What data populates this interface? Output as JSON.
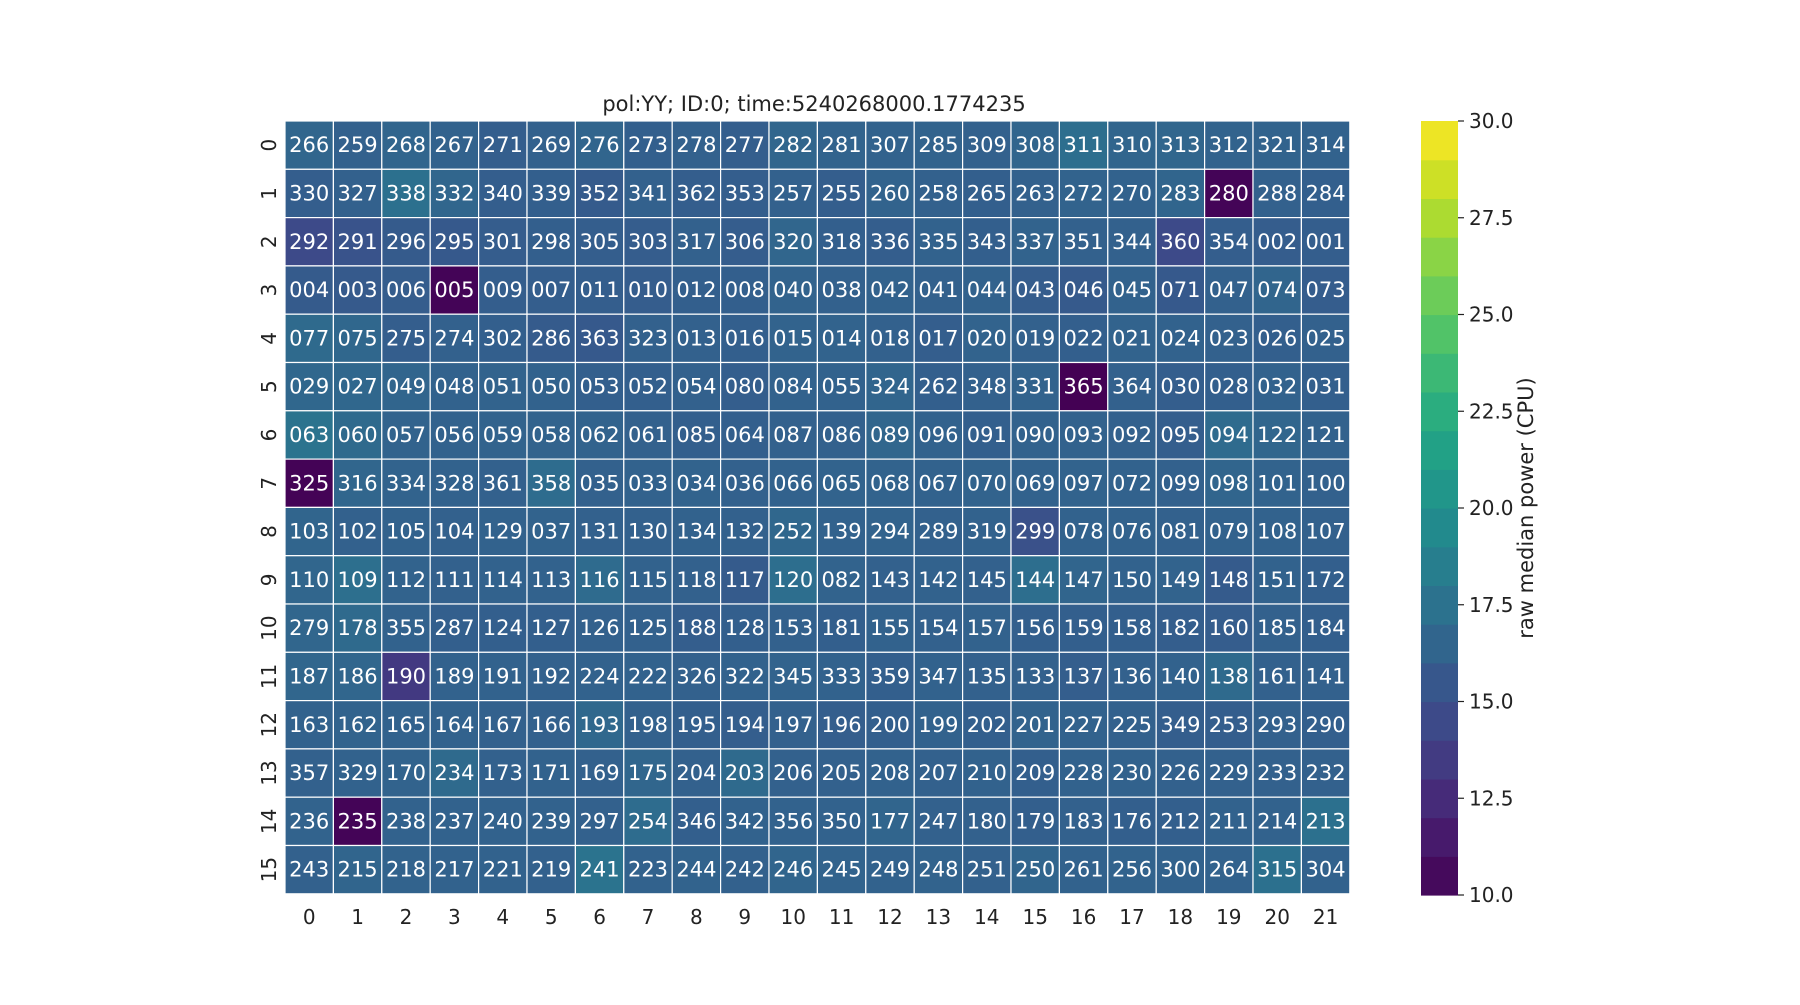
{
  "chart_data": {
    "type": "heatmap",
    "title": "pol:YY; ID:0; time:5240268000.1774235",
    "x_ticks": [
      "0",
      "1",
      "2",
      "3",
      "4",
      "5",
      "6",
      "7",
      "8",
      "9",
      "10",
      "11",
      "12",
      "13",
      "14",
      "15",
      "16",
      "17",
      "18",
      "19",
      "20",
      "21"
    ],
    "y_ticks": [
      "0",
      "1",
      "2",
      "3",
      "4",
      "5",
      "6",
      "7",
      "8",
      "9",
      "10",
      "11",
      "12",
      "13",
      "14",
      "15"
    ],
    "cell_labels": [
      [
        "266",
        "259",
        "268",
        "267",
        "271",
        "269",
        "276",
        "273",
        "278",
        "277",
        "282",
        "281",
        "307",
        "285",
        "309",
        "308",
        "311",
        "310",
        "313",
        "312",
        "321",
        "314"
      ],
      [
        "330",
        "327",
        "338",
        "332",
        "340",
        "339",
        "352",
        "341",
        "362",
        "353",
        "257",
        "255",
        "260",
        "258",
        "265",
        "263",
        "272",
        "270",
        "283",
        "280",
        "288",
        "284"
      ],
      [
        "292",
        "291",
        "296",
        "295",
        "301",
        "298",
        "305",
        "303",
        "317",
        "306",
        "320",
        "318",
        "336",
        "335",
        "343",
        "337",
        "351",
        "344",
        "360",
        "354",
        "002",
        "001"
      ],
      [
        "004",
        "003",
        "006",
        "005",
        "009",
        "007",
        "011",
        "010",
        "012",
        "008",
        "040",
        "038",
        "042",
        "041",
        "044",
        "043",
        "046",
        "045",
        "071",
        "047",
        "074",
        "073"
      ],
      [
        "077",
        "075",
        "275",
        "274",
        "302",
        "286",
        "363",
        "323",
        "013",
        "016",
        "015",
        "014",
        "018",
        "017",
        "020",
        "019",
        "022",
        "021",
        "024",
        "023",
        "026",
        "025"
      ],
      [
        "029",
        "027",
        "049",
        "048",
        "051",
        "050",
        "053",
        "052",
        "054",
        "080",
        "084",
        "055",
        "324",
        "262",
        "348",
        "331",
        "365",
        "364",
        "030",
        "028",
        "032",
        "031"
      ],
      [
        "063",
        "060",
        "057",
        "056",
        "059",
        "058",
        "062",
        "061",
        "085",
        "064",
        "087",
        "086",
        "089",
        "096",
        "091",
        "090",
        "093",
        "092",
        "095",
        "094",
        "122",
        "121"
      ],
      [
        "325",
        "316",
        "334",
        "328",
        "361",
        "358",
        "035",
        "033",
        "034",
        "036",
        "066",
        "065",
        "068",
        "067",
        "070",
        "069",
        "097",
        "072",
        "099",
        "098",
        "101",
        "100"
      ],
      [
        "103",
        "102",
        "105",
        "104",
        "129",
        "037",
        "131",
        "130",
        "134",
        "132",
        "252",
        "139",
        "294",
        "289",
        "319",
        "299",
        "078",
        "076",
        "081",
        "079",
        "108",
        "107"
      ],
      [
        "110",
        "109",
        "112",
        "111",
        "114",
        "113",
        "116",
        "115",
        "118",
        "117",
        "120",
        "082",
        "143",
        "142",
        "145",
        "144",
        "147",
        "150",
        "149",
        "148",
        "151",
        "172"
      ],
      [
        "279",
        "178",
        "355",
        "287",
        "124",
        "127",
        "126",
        "125",
        "188",
        "128",
        "153",
        "181",
        "155",
        "154",
        "157",
        "156",
        "159",
        "158",
        "182",
        "160",
        "185",
        "184"
      ],
      [
        "187",
        "186",
        "190",
        "189",
        "191",
        "192",
        "224",
        "222",
        "326",
        "322",
        "345",
        "333",
        "359",
        "347",
        "135",
        "133",
        "137",
        "136",
        "140",
        "138",
        "161",
        "141"
      ],
      [
        "163",
        "162",
        "165",
        "164",
        "167",
        "166",
        "193",
        "198",
        "195",
        "194",
        "197",
        "196",
        "200",
        "199",
        "202",
        "201",
        "227",
        "225",
        "349",
        "253",
        "293",
        "290"
      ],
      [
        "357",
        "329",
        "170",
        "234",
        "173",
        "171",
        "169",
        "175",
        "204",
        "203",
        "206",
        "205",
        "208",
        "207",
        "210",
        "209",
        "228",
        "230",
        "226",
        "229",
        "233",
        "232"
      ],
      [
        "236",
        "235",
        "238",
        "237",
        "240",
        "239",
        "297",
        "254",
        "346",
        "342",
        "356",
        "350",
        "177",
        "247",
        "180",
        "179",
        "183",
        "176",
        "212",
        "211",
        "214",
        "213"
      ],
      [
        "243",
        "215",
        "218",
        "217",
        "221",
        "219",
        "241",
        "223",
        "244",
        "242",
        "246",
        "245",
        "249",
        "248",
        "251",
        "250",
        "261",
        "256",
        "300",
        "264",
        "315",
        "304"
      ]
    ],
    "values": [
      [
        16.6,
        16.2,
        16.5,
        16.3,
        16.0,
        16.2,
        16.5,
        16.1,
        16.2,
        16.0,
        16.6,
        16.4,
        16.3,
        16.4,
        16.2,
        16.5,
        17.2,
        16.5,
        16.6,
        16.4,
        16.4,
        16.3
      ],
      [
        16.0,
        16.2,
        17.4,
        16.6,
        16.0,
        16.1,
        15.8,
        16.2,
        16.0,
        16.0,
        16.2,
        16.0,
        16.4,
        16.2,
        16.1,
        16.2,
        16.4,
        16.3,
        16.5,
        10.2,
        16.2,
        16.1
      ],
      [
        14.5,
        15.2,
        15.8,
        15.6,
        15.9,
        16.1,
        16.0,
        15.9,
        16.2,
        15.9,
        16.6,
        16.1,
        16.0,
        16.3,
        16.1,
        16.4,
        16.2,
        16.2,
        14.5,
        16.0,
        15.9,
        16.0
      ],
      [
        15.8,
        15.7,
        15.9,
        10.2,
        16.0,
        16.0,
        16.0,
        15.9,
        16.1,
        16.1,
        16.4,
        16.2,
        16.3,
        16.2,
        16.3,
        15.9,
        15.7,
        16.3,
        15.6,
        16.2,
        16.5,
        15.9
      ],
      [
        16.9,
        16.7,
        16.0,
        16.2,
        16.1,
        15.8,
        15.6,
        16.2,
        16.2,
        16.1,
        16.4,
        16.4,
        16.2,
        16.0,
        16.4,
        16.2,
        16.1,
        16.4,
        16.3,
        16.2,
        16.1,
        16.2
      ],
      [
        16.7,
        16.7,
        16.5,
        16.3,
        16.4,
        16.3,
        16.1,
        16.1,
        16.2,
        16.0,
        16.3,
        16.3,
        16.5,
        16.1,
        16.2,
        16.4,
        10.0,
        16.2,
        16.0,
        16.1,
        16.3,
        16.1
      ],
      [
        17.6,
        16.9,
        16.4,
        16.3,
        16.4,
        16.4,
        16.4,
        16.2,
        16.1,
        16.1,
        16.2,
        16.2,
        16.6,
        16.3,
        16.1,
        16.3,
        16.3,
        16.2,
        16.0,
        17.0,
        16.6,
        16.3
      ],
      [
        10.1,
        16.6,
        16.4,
        16.3,
        16.2,
        17.1,
        16.2,
        16.3,
        16.4,
        16.2,
        16.3,
        16.4,
        16.4,
        16.3,
        16.4,
        16.3,
        16.4,
        16.3,
        16.2,
        16.5,
        16.4,
        16.2
      ],
      [
        16.5,
        16.2,
        16.3,
        16.2,
        16.3,
        16.4,
        16.2,
        16.2,
        16.3,
        16.2,
        16.7,
        16.3,
        16.4,
        16.2,
        16.3,
        15.0,
        16.3,
        16.3,
        16.2,
        16.3,
        16.3,
        16.2
      ],
      [
        16.6,
        17.3,
        16.4,
        16.2,
        16.3,
        16.3,
        17.0,
        16.3,
        16.2,
        15.8,
        17.2,
        16.4,
        16.2,
        16.3,
        16.2,
        17.2,
        16.5,
        16.3,
        16.4,
        15.8,
        16.3,
        16.1
      ],
      [
        16.6,
        16.9,
        16.3,
        16.1,
        16.1,
        16.1,
        16.2,
        16.2,
        16.0,
        16.1,
        16.2,
        16.1,
        16.3,
        16.2,
        16.3,
        16.1,
        16.1,
        16.1,
        16.0,
        15.9,
        16.2,
        16.1
      ],
      [
        16.6,
        16.6,
        13.4,
        16.3,
        16.3,
        16.2,
        16.3,
        16.3,
        16.2,
        16.3,
        16.4,
        16.3,
        16.1,
        16.3,
        16.2,
        16.2,
        16.0,
        16.2,
        16.3,
        16.9,
        16.2,
        16.2
      ],
      [
        16.3,
        16.4,
        16.3,
        16.3,
        16.2,
        16.2,
        16.8,
        16.2,
        16.1,
        16.0,
        16.2,
        16.0,
        16.1,
        16.3,
        16.1,
        16.4,
        16.3,
        16.2,
        16.0,
        16.0,
        16.2,
        16.1
      ],
      [
        16.2,
        16.3,
        16.4,
        16.9,
        16.2,
        16.3,
        16.2,
        16.6,
        16.2,
        16.9,
        16.2,
        16.2,
        16.3,
        16.2,
        16.3,
        16.1,
        16.3,
        16.3,
        16.2,
        16.2,
        16.2,
        16.2
      ],
      [
        16.4,
        10.2,
        16.3,
        16.3,
        16.3,
        16.3,
        16.2,
        17.1,
        16.1,
        16.3,
        16.3,
        16.3,
        16.5,
        16.2,
        16.2,
        16.1,
        16.2,
        16.1,
        16.1,
        16.3,
        16.3,
        17.4
      ],
      [
        16.2,
        16.5,
        16.4,
        16.3,
        16.3,
        16.2,
        17.6,
        16.3,
        16.4,
        16.2,
        16.5,
        16.4,
        16.3,
        16.4,
        16.2,
        16.5,
        16.3,
        16.4,
        16.3,
        16.3,
        17.4,
        16.3
      ]
    ],
    "colormap": "viridis",
    "vmin": 10.0,
    "vmax": 30.0,
    "colorbar_label": "raw median power (CPU)",
    "colorbar_ticks": [
      "10.0",
      "12.5",
      "15.0",
      "17.5",
      "20.0",
      "22.5",
      "25.0",
      "27.5",
      "30.0"
    ],
    "colors": {
      "cell_text": "#ffffff",
      "cell_border": "#ffffff",
      "axis_text": "#222222"
    }
  }
}
